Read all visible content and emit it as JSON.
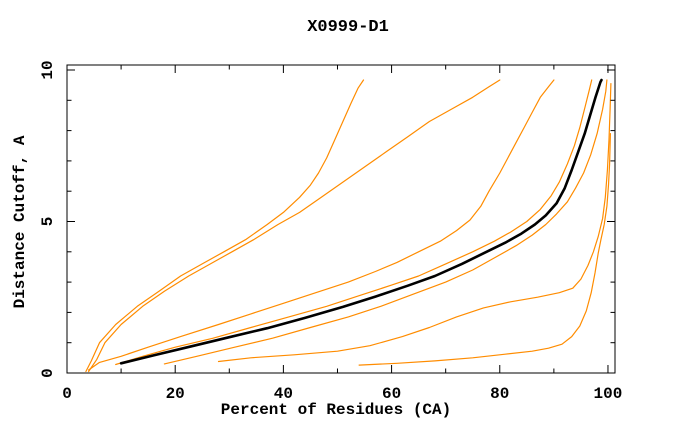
{
  "chart_data": {
    "type": "line",
    "title": "X0999-D1",
    "xlabel": "Percent of Residues (CA)",
    "ylabel": "Distance Cutoff, A",
    "xlim": [
      0,
      101.3
    ],
    "ylim": [
      0,
      10.165
    ],
    "grid": false,
    "legend": "none",
    "xticks_major": [
      0,
      20,
      40,
      60,
      80,
      100
    ],
    "xticks_minor": [
      10,
      30,
      50,
      70,
      90
    ],
    "yticks_major": [
      0,
      5,
      10
    ],
    "yticks_minor": [
      1,
      2,
      3,
      4,
      6,
      7,
      8,
      9
    ],
    "palette": {
      "orange": "#ff8c00",
      "black": "#000000",
      "axis": "#000000",
      "background": "#ffffff"
    },
    "series": [
      {
        "name": "orange-curve-1",
        "color": "orange",
        "stroke_width": 1.2,
        "points": [
          [
            3.5,
            0.05
          ],
          [
            4.5,
            0.4
          ],
          [
            6,
            1.0
          ],
          [
            9,
            1.6
          ],
          [
            13,
            2.2
          ],
          [
            17,
            2.7
          ],
          [
            21,
            3.2
          ],
          [
            25,
            3.6
          ],
          [
            29,
            4.0
          ],
          [
            33,
            4.4
          ],
          [
            37,
            4.9
          ],
          [
            40,
            5.3
          ],
          [
            43,
            5.8
          ],
          [
            45,
            6.2
          ],
          [
            46.5,
            6.6
          ],
          [
            48,
            7.1
          ],
          [
            49.5,
            7.7
          ],
          [
            51,
            8.3
          ],
          [
            52.5,
            8.9
          ],
          [
            53.8,
            9.4
          ],
          [
            54.8,
            9.67
          ]
        ]
      },
      {
        "name": "orange-curve-2",
        "color": "orange",
        "stroke_width": 1.2,
        "points": [
          [
            4,
            0.05
          ],
          [
            5.5,
            0.45
          ],
          [
            7,
            1.0
          ],
          [
            10,
            1.6
          ],
          [
            14,
            2.2
          ],
          [
            18,
            2.7
          ],
          [
            22.5,
            3.2
          ],
          [
            26.5,
            3.6
          ],
          [
            30.5,
            4.0
          ],
          [
            34.5,
            4.4
          ],
          [
            39,
            4.9
          ],
          [
            43,
            5.3
          ],
          [
            47,
            5.8
          ],
          [
            51,
            6.3
          ],
          [
            55,
            6.8
          ],
          [
            59,
            7.3
          ],
          [
            63,
            7.8
          ],
          [
            67,
            8.3
          ],
          [
            71,
            8.7
          ],
          [
            75,
            9.1
          ],
          [
            78,
            9.45
          ],
          [
            80,
            9.67
          ]
        ]
      },
      {
        "name": "orange-curve-3",
        "color": "orange",
        "stroke_width": 1.2,
        "points": [
          [
            4,
            0.1
          ],
          [
            6,
            0.35
          ],
          [
            10,
            0.55
          ],
          [
            15,
            0.85
          ],
          [
            21,
            1.2
          ],
          [
            28,
            1.6
          ],
          [
            34,
            1.95
          ],
          [
            40,
            2.3
          ],
          [
            46,
            2.65
          ],
          [
            52,
            3.0
          ],
          [
            57,
            3.35
          ],
          [
            61,
            3.65
          ],
          [
            65,
            4.0
          ],
          [
            69,
            4.35
          ],
          [
            72,
            4.7
          ],
          [
            74.5,
            5.05
          ],
          [
            76.5,
            5.5
          ],
          [
            78,
            6.0
          ],
          [
            80,
            6.6
          ],
          [
            81.5,
            7.1
          ],
          [
            83,
            7.6
          ],
          [
            84.5,
            8.1
          ],
          [
            86,
            8.6
          ],
          [
            87.5,
            9.1
          ],
          [
            89,
            9.45
          ],
          [
            90,
            9.67
          ]
        ]
      },
      {
        "name": "orange-curve-4",
        "color": "orange",
        "stroke_width": 1.2,
        "points": [
          [
            9,
            0.28
          ],
          [
            14,
            0.55
          ],
          [
            20,
            0.85
          ],
          [
            27,
            1.15
          ],
          [
            34,
            1.5
          ],
          [
            41,
            1.85
          ],
          [
            48,
            2.2
          ],
          [
            54,
            2.55
          ],
          [
            60,
            2.9
          ],
          [
            65,
            3.2
          ],
          [
            70,
            3.6
          ],
          [
            75,
            4.0
          ],
          [
            79,
            4.35
          ],
          [
            82,
            4.65
          ],
          [
            85,
            5.0
          ],
          [
            87.5,
            5.4
          ],
          [
            89.5,
            5.85
          ],
          [
            91,
            6.3
          ],
          [
            92.5,
            6.9
          ],
          [
            93.8,
            7.5
          ],
          [
            94.8,
            8.1
          ],
          [
            95.8,
            8.8
          ],
          [
            96.5,
            9.3
          ],
          [
            97,
            9.67
          ]
        ]
      },
      {
        "name": "orange-curve-5",
        "color": "orange",
        "stroke_width": 1.2,
        "points": [
          [
            18,
            0.3
          ],
          [
            24,
            0.55
          ],
          [
            31,
            0.85
          ],
          [
            38,
            1.15
          ],
          [
            45,
            1.5
          ],
          [
            52,
            1.85
          ],
          [
            58,
            2.2
          ],
          [
            64,
            2.6
          ],
          [
            70,
            3.0
          ],
          [
            75,
            3.4
          ],
          [
            79,
            3.8
          ],
          [
            83,
            4.2
          ],
          [
            86,
            4.55
          ],
          [
            88.5,
            4.9
          ],
          [
            90.5,
            5.25
          ],
          [
            92.5,
            5.65
          ],
          [
            94,
            6.1
          ],
          [
            95.5,
            6.6
          ],
          [
            96.8,
            7.2
          ],
          [
            98,
            7.9
          ],
          [
            99,
            8.7
          ],
          [
            99.6,
            9.3
          ],
          [
            99.8,
            9.67
          ]
        ]
      },
      {
        "name": "orange-curve-6",
        "color": "orange",
        "stroke_width": 1.2,
        "points": [
          [
            28,
            0.38
          ],
          [
            34,
            0.5
          ],
          [
            42,
            0.6
          ],
          [
            50,
            0.72
          ],
          [
            56,
            0.9
          ],
          [
            62,
            1.2
          ],
          [
            67,
            1.5
          ],
          [
            72,
            1.85
          ],
          [
            77,
            2.15
          ],
          [
            82,
            2.35
          ],
          [
            87,
            2.5
          ],
          [
            91,
            2.65
          ],
          [
            93.5,
            2.8
          ],
          [
            95,
            3.1
          ],
          [
            96.3,
            3.55
          ],
          [
            97.3,
            4.0
          ],
          [
            98.2,
            4.5
          ],
          [
            99,
            5.1
          ],
          [
            99.5,
            5.8
          ],
          [
            99.9,
            6.7
          ],
          [
            100.2,
            7.7
          ],
          [
            100.4,
            8.7
          ],
          [
            100.55,
            9.55
          ]
        ]
      },
      {
        "name": "orange-curve-7",
        "color": "orange",
        "stroke_width": 1.2,
        "points": [
          [
            54,
            0.26
          ],
          [
            61,
            0.32
          ],
          [
            68,
            0.4
          ],
          [
            75,
            0.5
          ],
          [
            81,
            0.62
          ],
          [
            86,
            0.72
          ],
          [
            89,
            0.82
          ],
          [
            91.5,
            0.95
          ],
          [
            93.3,
            1.2
          ],
          [
            94.8,
            1.55
          ],
          [
            96,
            2.05
          ],
          [
            96.9,
            2.65
          ],
          [
            97.6,
            3.3
          ],
          [
            98.2,
            3.95
          ],
          [
            98.7,
            4.4
          ],
          [
            99.3,
            4.9
          ],
          [
            99.8,
            5.5
          ],
          [
            100.1,
            6.2
          ],
          [
            100.3,
            6.9
          ],
          [
            100.45,
            7.9
          ]
        ]
      },
      {
        "name": "black-curve",
        "color": "black",
        "stroke_width": 2.6,
        "points": [
          [
            10,
            0.32
          ],
          [
            16,
            0.58
          ],
          [
            23,
            0.88
          ],
          [
            30,
            1.18
          ],
          [
            37,
            1.48
          ],
          [
            44,
            1.82
          ],
          [
            51,
            2.18
          ],
          [
            57,
            2.52
          ],
          [
            63,
            2.88
          ],
          [
            68,
            3.2
          ],
          [
            73,
            3.6
          ],
          [
            77,
            3.95
          ],
          [
            81,
            4.3
          ],
          [
            84,
            4.6
          ],
          [
            86.5,
            4.9
          ],
          [
            88.5,
            5.2
          ],
          [
            90.5,
            5.6
          ],
          [
            92,
            6.1
          ],
          [
            93.3,
            6.7
          ],
          [
            94.5,
            7.3
          ],
          [
            95.7,
            7.9
          ],
          [
            96.7,
            8.5
          ],
          [
            97.7,
            9.1
          ],
          [
            98.6,
            9.6
          ],
          [
            98.8,
            9.67
          ]
        ]
      }
    ]
  }
}
